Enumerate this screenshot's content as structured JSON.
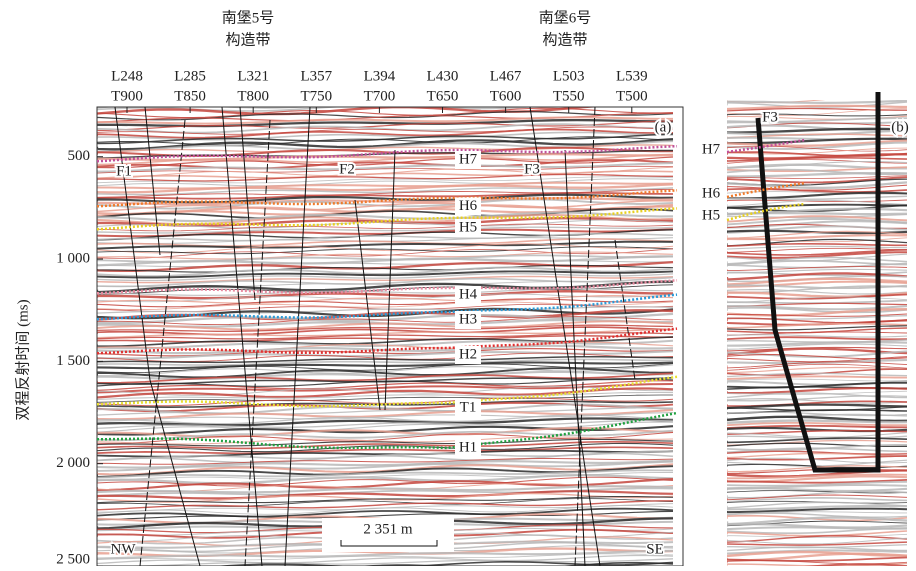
{
  "structures": [
    [
      "南堡5号",
      "构造带"
    ],
    [
      "南堡6号",
      "构造带"
    ]
  ],
  "lines": [
    {
      "inline": "L248",
      "trace": "T900"
    },
    {
      "inline": "L285",
      "trace": "T850"
    },
    {
      "inline": "L321",
      "trace": "T800"
    },
    {
      "inline": "L357",
      "trace": "T750"
    },
    {
      "inline": "L394",
      "trace": "T700"
    },
    {
      "inline": "L430",
      "trace": "T650"
    },
    {
      "inline": "L467",
      "trace": "T600"
    },
    {
      "inline": "L503",
      "trace": "T550"
    },
    {
      "inline": "L539",
      "trace": "T500"
    }
  ],
  "y_axis": {
    "label": "双程反射时间 (ms)",
    "ylim": [
      257,
      2500
    ],
    "yticks": [
      500,
      {
        "value": 1000,
        "label": "1 000"
      },
      {
        "value": 1500,
        "label": "1 500"
      },
      {
        "value": 2000,
        "label": "2 000"
      },
      {
        "value": 2500,
        "label": "2 500"
      }
    ]
  },
  "panel_a": {
    "tag": "(a)",
    "horizons": [
      {
        "name": "H7",
        "color": "#c0509a"
      },
      {
        "name": "H6",
        "color": "#f07a2a"
      },
      {
        "name": "H5",
        "color": "#e8d020"
      },
      {
        "name": "H4",
        "color": "#e88aa0"
      },
      {
        "name": "H3",
        "color": "#2a9ad8"
      },
      {
        "name": "H2",
        "color": "#e03030"
      },
      {
        "name": "T1",
        "color": "#e8e030"
      },
      {
        "name": "H1",
        "color": "#20a040"
      }
    ],
    "faults": [
      "F1",
      "F2",
      "F3"
    ],
    "directions": [
      "NW",
      "SE"
    ],
    "scale_bar": "2 351 m"
  },
  "panel_b": {
    "tag": "(b)",
    "fault": "F3",
    "horizons": [
      "H7",
      "H6",
      "H5"
    ]
  }
}
